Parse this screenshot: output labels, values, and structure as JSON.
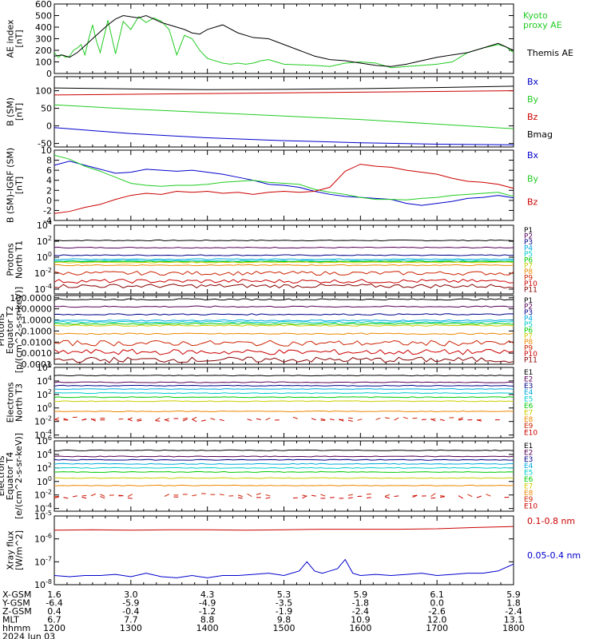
{
  "chart_data": [
    {
      "type": "line",
      "ylabel": "AE index [nT]",
      "ylim": [
        0,
        600
      ],
      "yticks": [
        "0",
        "100",
        "200",
        "300",
        "400",
        "500",
        "600"
      ],
      "series": [
        {
          "name": "Kyoto proxy AE",
          "color": "#22cc22",
          "x": [
            0,
            5,
            10,
            15,
            20,
            25,
            30,
            35,
            40,
            45,
            50,
            55,
            60,
            70,
            80,
            90,
            100,
            110,
            120,
            130,
            140,
            150,
            160,
            170,
            180,
            190,
            200,
            210,
            220,
            230,
            240,
            250,
            260,
            270,
            280,
            290,
            300,
            320,
            340,
            360,
            380,
            400,
            420,
            440,
            460,
            480,
            500,
            520,
            540,
            560,
            580,
            590,
            600
          ],
          "y": [
            180,
            140,
            160,
            140,
            150,
            200,
            220,
            250,
            160,
            300,
            420,
            280,
            180,
            460,
            170,
            450,
            380,
            490,
            440,
            480,
            450,
            380,
            160,
            330,
            300,
            200,
            130,
            110,
            90,
            80,
            90,
            80,
            90,
            110,
            120,
            100,
            80,
            75,
            70,
            60,
            90,
            100,
            90,
            50,
            60,
            70,
            80,
            100,
            180,
            220,
            250,
            230,
            180
          ]
        },
        {
          "name": "Themis AE",
          "color": "#000000",
          "x": [
            0,
            10,
            20,
            30,
            40,
            50,
            60,
            70,
            80,
            90,
            100,
            110,
            120,
            130,
            140,
            150,
            160,
            170,
            180,
            190,
            200,
            220,
            240,
            260,
            280,
            300,
            320,
            340,
            360,
            380,
            400,
            420,
            440,
            460,
            480,
            500,
            520,
            540,
            560,
            580,
            600
          ],
          "y": [
            150,
            160,
            140,
            180,
            240,
            300,
            360,
            420,
            470,
            500,
            490,
            480,
            500,
            470,
            440,
            420,
            400,
            380,
            350,
            340,
            380,
            420,
            350,
            310,
            300,
            250,
            200,
            150,
            120,
            110,
            90,
            70,
            60,
            80,
            110,
            140,
            160,
            180,
            220,
            260,
            200
          ]
        }
      ]
    },
    {
      "type": "line",
      "ylabel": "B (SM) [nT]",
      "ylim": [
        -60,
        140
      ],
      "yticks": [
        "-50",
        "0",
        "50",
        "100"
      ],
      "series": [
        {
          "name": "Bx",
          "color": "#0000cc",
          "x": [
            0,
            100,
            200,
            300,
            400,
            500,
            600
          ],
          "y": [
            -5,
            -22,
            -34,
            -42,
            -48,
            -52,
            -54
          ]
        },
        {
          "name": "By",
          "color": "#22cc22",
          "x": [
            0,
            100,
            200,
            300,
            400,
            500,
            600
          ],
          "y": [
            60,
            48,
            38,
            28,
            18,
            5,
            -8
          ]
        },
        {
          "name": "Bz",
          "color": "#cc0000",
          "x": [
            0,
            100,
            200,
            300,
            400,
            500,
            600
          ],
          "y": [
            88,
            90,
            92,
            94,
            96,
            98,
            100
          ]
        },
        {
          "name": "Bmag",
          "color": "#000000",
          "x": [
            0,
            100,
            200,
            300,
            400,
            500,
            600
          ],
          "y": [
            108,
            105,
            103,
            104,
            106,
            109,
            113
          ]
        }
      ]
    },
    {
      "type": "line",
      "ylabel": "B (SM)-IGRF (SM) [nT]",
      "ylim": [
        -4,
        10
      ],
      "yticks": [
        "-4",
        "-2",
        "0",
        "2",
        "4",
        "6",
        "8",
        "10"
      ],
      "series": [
        {
          "name": "Bx",
          "color": "#0000cc",
          "x": [
            0,
            20,
            40,
            60,
            80,
            100,
            120,
            140,
            160,
            180,
            200,
            220,
            240,
            260,
            280,
            300,
            320,
            340,
            360,
            380,
            400,
            420,
            440,
            460,
            480,
            500,
            520,
            540,
            560,
            580,
            600
          ],
          "y": [
            7,
            7.8,
            7,
            6.2,
            5.4,
            5.6,
            6.2,
            6.0,
            5.8,
            6.0,
            5.6,
            5.2,
            4.6,
            4.0,
            3.2,
            3.0,
            2.6,
            1.8,
            1.2,
            0.8,
            0.6,
            0.4,
            0.2,
            -0.6,
            -1.0,
            -0.6,
            -0.2,
            0.4,
            0.6,
            1.0,
            0.5
          ]
        },
        {
          "name": "By",
          "color": "#22cc22",
          "x": [
            0,
            20,
            40,
            60,
            80,
            100,
            120,
            140,
            160,
            180,
            200,
            220,
            240,
            260,
            280,
            300,
            320,
            340,
            360,
            380,
            400,
            420,
            440,
            460,
            480,
            500,
            520,
            540,
            560,
            580,
            600
          ],
          "y": [
            9,
            8.2,
            6.8,
            5.8,
            4.6,
            3.4,
            3.0,
            2.8,
            3.0,
            3.0,
            3.2,
            3.6,
            3.8,
            4.0,
            3.6,
            3.4,
            3.2,
            2.2,
            1.6,
            1.2,
            0.6,
            0.2,
            0.2,
            0.1,
            0.4,
            0.6,
            1.0,
            1.2,
            1.4,
            1.6,
            0.8
          ]
        },
        {
          "name": "Bz",
          "color": "#cc0000",
          "x": [
            0,
            20,
            40,
            60,
            80,
            100,
            120,
            140,
            160,
            180,
            200,
            220,
            240,
            260,
            280,
            300,
            320,
            340,
            360,
            380,
            400,
            420,
            440,
            460,
            480,
            500,
            520,
            540,
            560,
            580,
            600
          ],
          "y": [
            -2.6,
            -2.2,
            -1.4,
            -0.8,
            0.2,
            1.0,
            1.4,
            1.2,
            1.8,
            1.6,
            1.8,
            1.4,
            1.6,
            1.2,
            1.6,
            1.8,
            1.6,
            1.8,
            2.6,
            5.8,
            7.2,
            6.8,
            6.6,
            6.0,
            5.6,
            5.2,
            4.4,
            3.8,
            3.6,
            3.2,
            2.4
          ]
        }
      ]
    },
    {
      "type": "line",
      "ylabel": "Protons North T1",
      "log": true,
      "ylim": [
        -4.6,
        4
      ],
      "yticks": [
        "10^4",
        "10^2",
        "10^0",
        "10^-2",
        "10^-4"
      ],
      "series": [
        {
          "name": "P1",
          "color": "#000000",
          "level": 2.1
        },
        {
          "name": "P2",
          "color": "#550055",
          "level": 1.2
        },
        {
          "name": "P3",
          "color": "#000088",
          "level": 0.25
        },
        {
          "name": "P4",
          "color": "#00aadd",
          "level": -0.25
        },
        {
          "name": "P5",
          "color": "#00cccc",
          "level": -0.45
        },
        {
          "name": "P6",
          "color": "#00cc00",
          "level": -0.55
        },
        {
          "name": "P7",
          "color": "#cccc00",
          "level": -0.65
        },
        {
          "name": "P8",
          "color": "#ee8800",
          "level": -1.0
        },
        {
          "name": "P9",
          "color": "#cc2200",
          "level": -2.0
        },
        {
          "name": "P10",
          "color": "#cc0000",
          "level": -3.0
        },
        {
          "name": "P11",
          "color": "#880000",
          "level": -3.6
        }
      ]
    },
    {
      "type": "line",
      "ylabel": "Protons Equator T2 [p/(cm^2-s-sr-keV)]",
      "log": true,
      "ylim": [
        -4,
        2.2
      ],
      "yticks": [
        "100.0000",
        "10.0000",
        "1.0000",
        "0.1000",
        "0.0100",
        "0.0010",
        "0.0001"
      ],
      "series": [
        {
          "name": "P1",
          "color": "#000000",
          "level": 1.85
        },
        {
          "name": "P2",
          "color": "#550055",
          "level": 1.2
        },
        {
          "name": "P3",
          "color": "#000088",
          "level": 0.5
        },
        {
          "name": "P4",
          "color": "#00aadd",
          "level": -0.05
        },
        {
          "name": "P5",
          "color": "#00cccc",
          "level": -0.2
        },
        {
          "name": "P6",
          "color": "#00cc00",
          "level": -0.35
        },
        {
          "name": "P7",
          "color": "#cccc00",
          "level": -0.5
        },
        {
          "name": "P8",
          "color": "#ee8800",
          "level": -1.25
        },
        {
          "name": "P9",
          "color": "#cc2200",
          "level": -2.1
        },
        {
          "name": "P10",
          "color": "#cc0000",
          "level": -2.9
        },
        {
          "name": "P11",
          "color": "#880000",
          "level": -3.6
        }
      ]
    },
    {
      "type": "line",
      "ylabel": "Electrons North T3",
      "log": true,
      "ylim": [
        -4.4,
        6
      ],
      "yticks": [
        "10^6",
        "10^4",
        "10^2",
        "10^0",
        "10^-2",
        "10^-4"
      ],
      "series": [
        {
          "name": "E1",
          "color": "#000000",
          "level": 4.8
        },
        {
          "name": "E2",
          "color": "#550055",
          "level": 3.8
        },
        {
          "name": "E3",
          "color": "#000088",
          "level": 3.3
        },
        {
          "name": "E4",
          "color": "#00aadd",
          "level": 2.8
        },
        {
          "name": "E5",
          "color": "#00cccc",
          "level": 2.2
        },
        {
          "name": "E6",
          "color": "#00cc00",
          "level": 1.6
        },
        {
          "name": "E7",
          "color": "#cccc00",
          "level": 1.0
        },
        {
          "name": "E8",
          "color": "#ee8800",
          "level": -0.5
        },
        {
          "name": "E9",
          "color": "#cc2200",
          "level": -1.6
        },
        {
          "name": "E10",
          "color": "#cc0000",
          "level": -1.8
        }
      ]
    },
    {
      "type": "line",
      "ylabel": "Electrons Equator T4 [e/(cm^2-s-sr-keV)]",
      "log": true,
      "ylim": [
        -4.4,
        6
      ],
      "yticks": [
        "10^6",
        "10^4",
        "10^2",
        "10^0",
        "10^-2",
        "10^-4"
      ],
      "series": [
        {
          "name": "E1",
          "color": "#000000",
          "level": 4.6
        },
        {
          "name": "E2",
          "color": "#550055",
          "level": 3.7
        },
        {
          "name": "E3",
          "color": "#000088",
          "level": 3.2
        },
        {
          "name": "E4",
          "color": "#00aadd",
          "level": 2.6
        },
        {
          "name": "E5",
          "color": "#00cccc",
          "level": 2.0
        },
        {
          "name": "E6",
          "color": "#00cc00",
          "level": 1.4
        },
        {
          "name": "E7",
          "color": "#cccc00",
          "level": 0.5
        },
        {
          "name": "E8",
          "color": "#ee8800",
          "level": -0.6
        },
        {
          "name": "E9",
          "color": "#cc2200",
          "level": -2.0
        },
        {
          "name": "E10",
          "color": "#cc0000",
          "level": -2.3
        }
      ]
    },
    {
      "type": "line",
      "ylabel": "Xray flux [W/m^2]",
      "log": true,
      "ylim": [
        -8,
        -5
      ],
      "yticks": [
        "10^-5",
        "10^-6",
        "10^-7",
        "10^-8"
      ],
      "series": [
        {
          "name": "0.1-0.8 nm",
          "color": "#cc0000",
          "x": [
            0,
            50,
            100,
            150,
            200,
            250,
            300,
            350,
            400,
            450,
            500,
            550,
            600
          ],
          "y": [
            -5.62,
            -5.6,
            -5.62,
            -5.6,
            -5.6,
            -5.62,
            -5.6,
            -5.58,
            -5.58,
            -5.58,
            -5.56,
            -5.5,
            -5.46
          ]
        },
        {
          "name": "0.05-0.4 nm",
          "color": "#0000cc",
          "x": [
            0,
            20,
            40,
            60,
            80,
            100,
            120,
            140,
            160,
            180,
            200,
            220,
            240,
            260,
            280,
            300,
            320,
            330,
            340,
            350,
            360,
            370,
            380,
            390,
            400,
            420,
            440,
            460,
            480,
            500,
            520,
            540,
            560,
            580,
            600
          ],
          "y": [
            -7.6,
            -7.65,
            -7.6,
            -7.6,
            -7.55,
            -7.65,
            -7.5,
            -7.65,
            -7.7,
            -7.6,
            -7.7,
            -7.6,
            -7.6,
            -7.55,
            -7.5,
            -7.6,
            -7.4,
            -7.0,
            -7.4,
            -7.5,
            -7.4,
            -7.3,
            -6.9,
            -7.5,
            -7.6,
            -7.55,
            -7.6,
            -7.55,
            -7.5,
            -7.6,
            -7.55,
            -7.5,
            -7.5,
            -7.4,
            -7.1
          ]
        }
      ]
    }
  ],
  "legends": [
    [
      {
        "text": "Kyoto",
        "color": "#22cc22"
      },
      {
        "text": "proxy AE",
        "color": "#22cc22"
      },
      {
        "text": "Themis AE",
        "color": "#000000"
      }
    ],
    [
      {
        "text": "Bx",
        "color": "#0000cc"
      },
      {
        "text": "By",
        "color": "#22cc22"
      },
      {
        "text": "Bz",
        "color": "#cc0000"
      },
      {
        "text": "Bmag",
        "color": "#000000"
      }
    ],
    [
      {
        "text": "Bx",
        "color": "#0000cc"
      },
      {
        "text": "By",
        "color": "#22cc22"
      },
      {
        "text": "Bz",
        "color": "#cc0000"
      }
    ],
    [],
    [],
    [],
    [],
    [
      {
        "text": "0.1-0.8 nm",
        "color": "#cc0000"
      },
      {
        "text": "0.05-0.4 nm",
        "color": "#0000cc"
      }
    ]
  ],
  "ylabels": [
    [
      "AE index",
      "[nT]"
    ],
    [
      "B (SM)",
      "[nT]"
    ],
    [
      "B (SM)-IGRF (SM)",
      "[nT]"
    ],
    [
      "Protons",
      "North T1"
    ],
    [
      "Protons",
      "Equator T2",
      "[p/(cm^2-s-sr-keV)]"
    ],
    [
      "Electrons",
      "North T3"
    ],
    [
      "Electrons",
      "Equator T4",
      "[e/(cm^2-s-sr-keV)]"
    ],
    [
      "Xray flux",
      "[W/m^2]"
    ]
  ],
  "footer": {
    "rows": [
      {
        "label": "X-GSM",
        "values": [
          "1.6",
          "3.0",
          "4.3",
          "5.3",
          "5.9",
          "6.1",
          "5.9"
        ]
      },
      {
        "label": "Y-GSM",
        "values": [
          "-6.4",
          "-5.9",
          "-4.9",
          "-3.5",
          "-1.8",
          "0.0",
          "1.8"
        ]
      },
      {
        "label": "Z-GSM",
        "values": [
          "0.4",
          "-0.4",
          "-1.2",
          "-1.9",
          "-2.4",
          "-2.6",
          "-2.4"
        ]
      },
      {
        "label": "MLT",
        "values": [
          "6.7",
          "7.7",
          "8.8",
          "9.8",
          "10.9",
          "12.0",
          "13.1"
        ]
      },
      {
        "label": "hhmm",
        "values": [
          "1200",
          "1300",
          "1400",
          "1500",
          "1600",
          "1700",
          "1800"
        ]
      }
    ],
    "date": "2024 Jun 03"
  }
}
